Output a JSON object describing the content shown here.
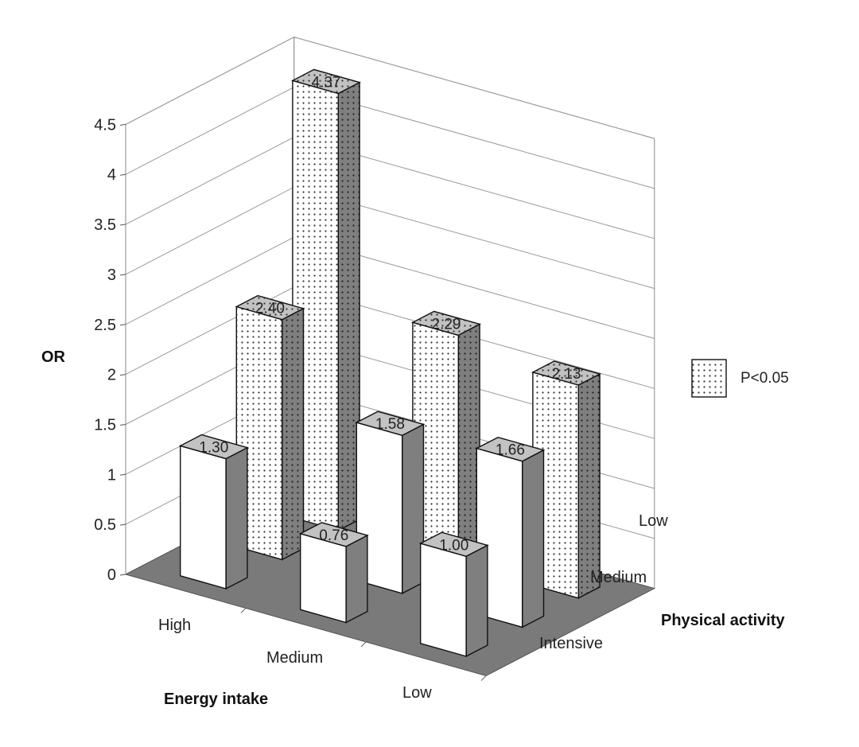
{
  "chart_data": {
    "type": "bar",
    "subtype": "3d-grid",
    "ylabel": "OR",
    "xlabel": "Energy intake",
    "zlabel": "Physical activity",
    "ylim": [
      0,
      4.5
    ],
    "y_ticks": [
      "0",
      "0.5",
      "1",
      "1.5",
      "2",
      "2.5",
      "3",
      "3.5",
      "4",
      "4.5"
    ],
    "energy_intake_categories": [
      "High",
      "Medium",
      "Low"
    ],
    "physical_activity_categories": [
      "Intensive",
      "Medium",
      "Low"
    ],
    "bars": [
      {
        "energy_intake": "High",
        "physical_activity": "Intensive",
        "value": 1.3,
        "label": "1.30",
        "significant": false
      },
      {
        "energy_intake": "High",
        "physical_activity": "Medium",
        "value": 2.4,
        "label": "2.40",
        "significant": true
      },
      {
        "energy_intake": "High",
        "physical_activity": "Low",
        "value": 4.37,
        "label": "4.37",
        "significant": true
      },
      {
        "energy_intake": "Medium",
        "physical_activity": "Intensive",
        "value": 0.76,
        "label": "0.76",
        "significant": false
      },
      {
        "energy_intake": "Medium",
        "physical_activity": "Medium",
        "value": 1.58,
        "label": "1.58",
        "significant": false
      },
      {
        "energy_intake": "Medium",
        "physical_activity": "Low",
        "value": 2.29,
        "label": "2.29",
        "significant": true
      },
      {
        "energy_intake": "Low",
        "physical_activity": "Intensive",
        "value": 1.0,
        "label": "1.00",
        "significant": false
      },
      {
        "energy_intake": "Low",
        "physical_activity": "Medium",
        "value": 1.66,
        "label": "1.66",
        "significant": false
      },
      {
        "energy_intake": "Low",
        "physical_activity": "Low",
        "value": 2.13,
        "label": "2.13",
        "significant": true
      }
    ],
    "legend": {
      "label": "P<0.05",
      "placement": "right"
    },
    "grid": true,
    "colors": {
      "floor": "#7a7a7a",
      "side": "#7f7f7f",
      "top": "#c2c2c2",
      "front": "#ffffff",
      "dots": "#333333"
    }
  }
}
